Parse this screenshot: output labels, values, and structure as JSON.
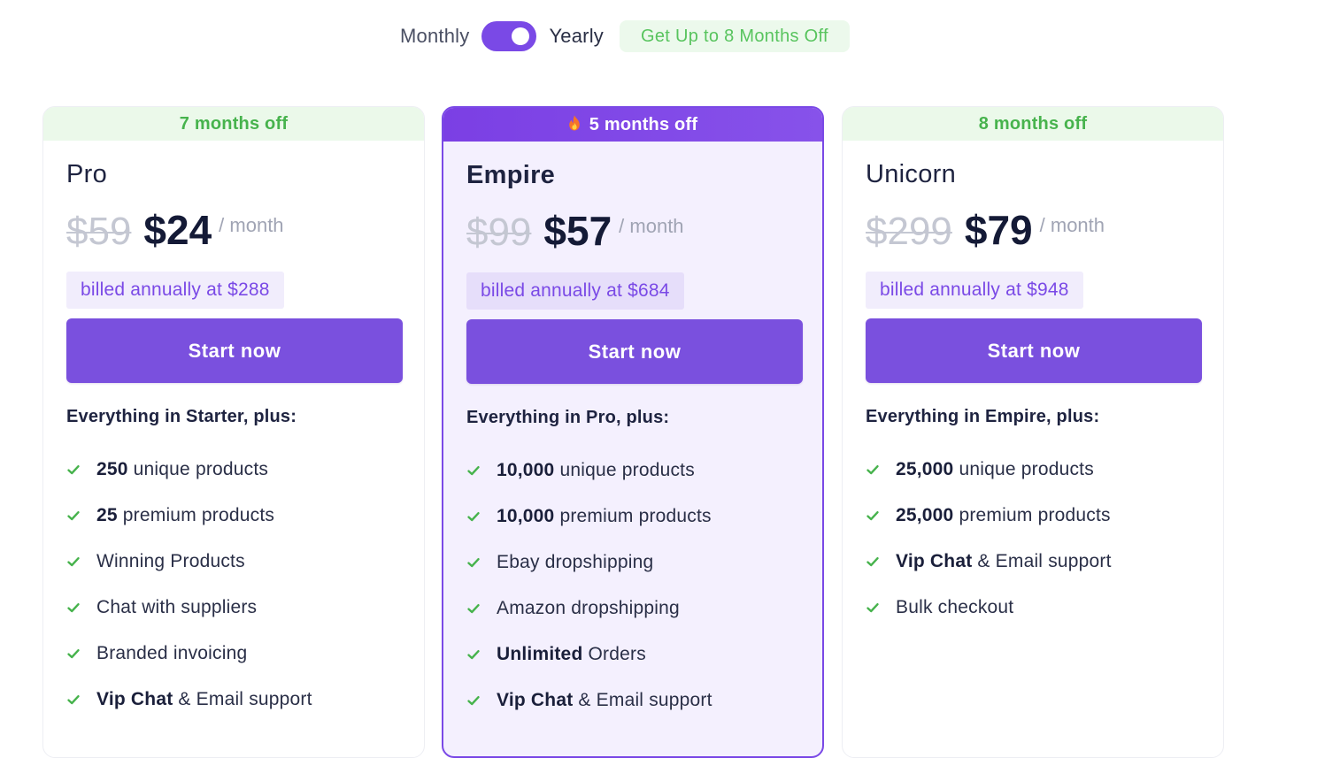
{
  "billing_toggle": {
    "monthly_label": "Monthly",
    "yearly_label": "Yearly",
    "selected": "Yearly",
    "promo": "Get Up to 8 Months Off"
  },
  "colors": {
    "accent": "#7a49e6",
    "check": "#47b34d",
    "banner_green_bg": "#ebf9ea"
  },
  "plans": [
    {
      "banner": "7 months off",
      "name": "Pro",
      "old_price": "$59",
      "price": "$24",
      "per": "/ month",
      "billed": "billed annually at $288",
      "cta": "Start now",
      "features_heading": "Everything in Starter, plus:",
      "features": [
        {
          "bold": "250",
          "text": " unique products"
        },
        {
          "bold": "25",
          "text": " premium products"
        },
        {
          "bold": "",
          "text": "Winning Products"
        },
        {
          "bold": "",
          "text": "Chat with suppliers"
        },
        {
          "bold": "",
          "text": "Branded invoicing"
        },
        {
          "bold": "Vip Chat",
          "text": " & Email support"
        }
      ]
    },
    {
      "banner": "5 months off",
      "banner_icon": "fire-icon",
      "name": "Empire",
      "old_price": "$99",
      "price": "$57",
      "per": "/ month",
      "billed": "billed annually at $684",
      "cta": "Start now",
      "features_heading": "Everything in Pro, plus:",
      "features": [
        {
          "bold": "10,000",
          "text": " unique products"
        },
        {
          "bold": "10,000",
          "text": " premium products"
        },
        {
          "bold": "",
          "text": "Ebay dropshipping"
        },
        {
          "bold": "",
          "text": "Amazon dropshipping"
        },
        {
          "bold": "Unlimited",
          "text": " Orders"
        },
        {
          "bold": "Vip Chat",
          "text": " & Email support"
        }
      ]
    },
    {
      "banner": "8 months off",
      "name": "Unicorn",
      "old_price": "$299",
      "price": "$79",
      "per": "/ month",
      "billed": "billed annually at $948",
      "cta": "Start now",
      "features_heading": "Everything in Empire, plus:",
      "features": [
        {
          "bold": "25,000",
          "text": " unique products"
        },
        {
          "bold": "25,000",
          "text": " premium products"
        },
        {
          "bold": "Vip Chat",
          "text": " & Email support"
        },
        {
          "bold": "",
          "text": "Bulk checkout"
        }
      ]
    }
  ]
}
